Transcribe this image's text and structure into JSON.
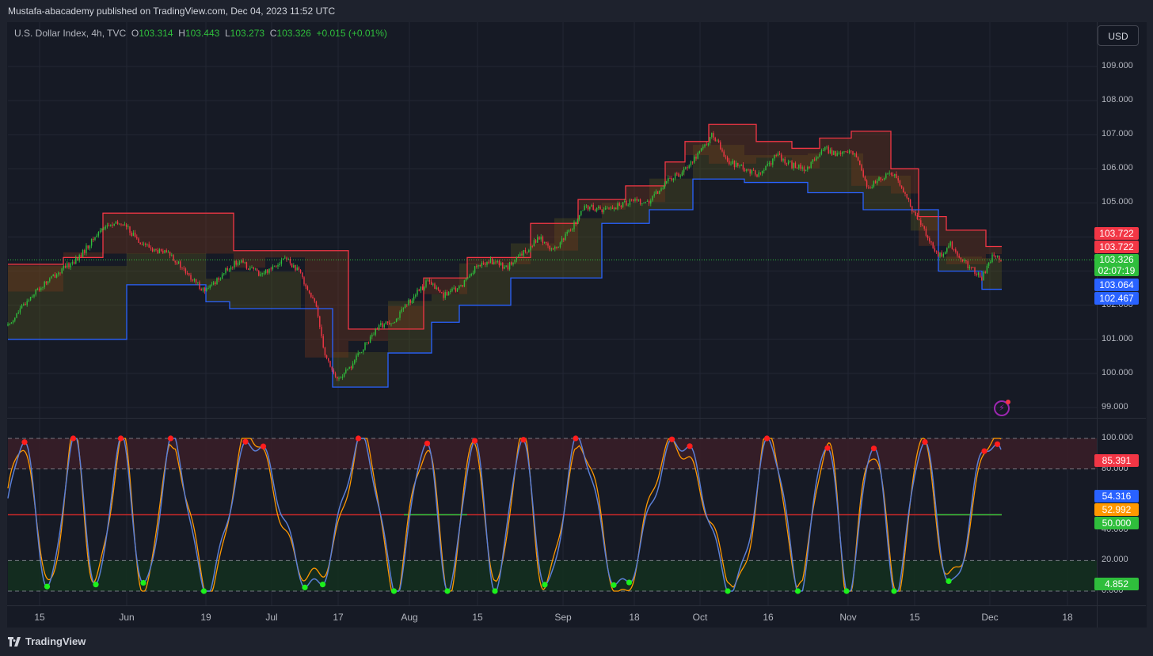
{
  "header": {
    "publisher_text": "Mustafa-abacademy published on TradingView.com, Dec 04, 2023 11:52 UTC"
  },
  "legend": {
    "symbol": "U.S. Dollar Index, 4h, TVC",
    "o_label": "O",
    "o_value": "103.314",
    "h_label": "H",
    "h_value": "103.443",
    "l_label": "L",
    "l_value": "103.273",
    "c_label": "C",
    "c_value": "103.326",
    "change": "+0.015 (+0.01%)"
  },
  "currency_button": "USD",
  "price_axis_ticks": [
    "109.000",
    "108.000",
    "107.000",
    "106.000",
    "105.000",
    "102.000",
    "101.000",
    "100.000",
    "99.000"
  ],
  "price_tags": {
    "upper1": "103.722",
    "upper2": "103.722",
    "last": "103.326",
    "countdown": "02:07:19",
    "lower1": "103.064",
    "lower2": "102.467"
  },
  "osc_axis_ticks": [
    "100.000",
    "80.000",
    "40.000",
    "20.000",
    "0.000"
  ],
  "osc_tags": {
    "red": "85.391",
    "blue": "54.316",
    "orange": "52.992",
    "green": "50.000",
    "low": "4.852"
  },
  "x_axis_labels": [
    "15",
    "Jun",
    "19",
    "Jul",
    "17",
    "Aug",
    "15",
    "Sep",
    "18",
    "Oct",
    "16",
    "Nov",
    "15",
    "Dec",
    "18"
  ],
  "footer": {
    "brand": "TradingView"
  },
  "colors": {
    "up": "#2fbe3c",
    "down": "#f23645",
    "resistance": "#f23645",
    "support": "#2962ff",
    "osc_blue": "#5b7fd6",
    "osc_orange": "#ff9800",
    "dot_red": "#ff1d1d",
    "dot_green": "#1cf01c",
    "last_price": "#2fbe3c"
  },
  "chart_data": {
    "type": "candlestick",
    "price_ylim": [
      98.5,
      109.5
    ],
    "anchors": [
      [
        0,
        101.1
      ],
      [
        40,
        102.3
      ],
      [
        70,
        102.9
      ],
      [
        100,
        103.4
      ],
      [
        130,
        104.3
      ],
      [
        155,
        104.4
      ],
      [
        175,
        103.9
      ],
      [
        195,
        103.6
      ],
      [
        215,
        103.5
      ],
      [
        240,
        102.8
      ],
      [
        260,
        102.4
      ],
      [
        280,
        102.9
      ],
      [
        300,
        103.3
      ],
      [
        330,
        102.9
      ],
      [
        360,
        103.4
      ],
      [
        380,
        102.9
      ],
      [
        400,
        101.9
      ],
      [
        410,
        100.6
      ],
      [
        425,
        99.8
      ],
      [
        440,
        100.1
      ],
      [
        460,
        100.8
      ],
      [
        480,
        101.4
      ],
      [
        500,
        101.6
      ],
      [
        520,
        102.2
      ],
      [
        540,
        102.7
      ],
      [
        560,
        102.3
      ],
      [
        580,
        102.5
      ],
      [
        600,
        103.1
      ],
      [
        620,
        103.3
      ],
      [
        640,
        103.1
      ],
      [
        660,
        103.5
      ],
      [
        680,
        104.0
      ],
      [
        700,
        103.6
      ],
      [
        720,
        104.2
      ],
      [
        740,
        104.9
      ],
      [
        760,
        104.8
      ],
      [
        780,
        104.9
      ],
      [
        800,
        105.1
      ],
      [
        820,
        105.0
      ],
      [
        840,
        105.6
      ],
      [
        860,
        105.9
      ],
      [
        880,
        106.4
      ],
      [
        900,
        107.0
      ],
      [
        920,
        106.2
      ],
      [
        940,
        106.0
      ],
      [
        960,
        105.8
      ],
      [
        980,
        106.4
      ],
      [
        1000,
        106.1
      ],
      [
        1020,
        106.0
      ],
      [
        1040,
        106.6
      ],
      [
        1060,
        106.4
      ],
      [
        1080,
        106.5
      ],
      [
        1095,
        105.4
      ],
      [
        1110,
        105.7
      ],
      [
        1130,
        105.9
      ],
      [
        1150,
        104.9
      ],
      [
        1165,
        104.3
      ],
      [
        1185,
        103.4
      ],
      [
        1200,
        103.8
      ],
      [
        1220,
        103.2
      ],
      [
        1240,
        102.8
      ],
      [
        1255,
        103.5
      ],
      [
        1265,
        103.33
      ]
    ],
    "resistance_steps": [
      [
        10,
        103.2
      ],
      [
        80,
        103.4
      ],
      [
        130,
        104.7
      ],
      [
        295,
        103.6
      ],
      [
        335,
        103.6
      ],
      [
        385,
        103.6
      ],
      [
        440,
        101.3
      ],
      [
        490,
        101.3
      ],
      [
        535,
        102.8
      ],
      [
        590,
        103.4
      ],
      [
        670,
        104.4
      ],
      [
        730,
        105.1
      ],
      [
        790,
        105.5
      ],
      [
        840,
        106.2
      ],
      [
        865,
        106.8
      ],
      [
        895,
        107.3
      ],
      [
        955,
        106.8
      ],
      [
        1000,
        106.6
      ],
      [
        1035,
        106.9
      ],
      [
        1075,
        107.1
      ],
      [
        1125,
        106.0
      ],
      [
        1160,
        104.6
      ],
      [
        1195,
        104.2
      ],
      [
        1245,
        103.722
      ]
    ],
    "support_steps": [
      [
        10,
        101.0
      ],
      [
        160,
        102.6
      ],
      [
        260,
        102.1
      ],
      [
        290,
        101.9
      ],
      [
        380,
        101.9
      ],
      [
        420,
        99.6
      ],
      [
        490,
        100.6
      ],
      [
        545,
        101.5
      ],
      [
        580,
        102.0
      ],
      [
        645,
        102.8
      ],
      [
        700,
        102.8
      ],
      [
        760,
        104.4
      ],
      [
        820,
        104.8
      ],
      [
        875,
        105.7
      ],
      [
        940,
        105.6
      ],
      [
        1020,
        105.3
      ],
      [
        1090,
        104.8
      ],
      [
        1150,
        104.8
      ],
      [
        1185,
        103.0
      ],
      [
        1240,
        102.467
      ]
    ],
    "osc_ylim": [
      0,
      100
    ],
    "osc_bands": {
      "upper": 100,
      "upper_inner": 80,
      "mid": 50,
      "lower_inner": 20,
      "lower": 0
    },
    "osc_last": {
      "blue": 54.316,
      "orange": 52.992,
      "mid": 50.0,
      "overbought": 85.391,
      "oversold": 4.852
    }
  }
}
